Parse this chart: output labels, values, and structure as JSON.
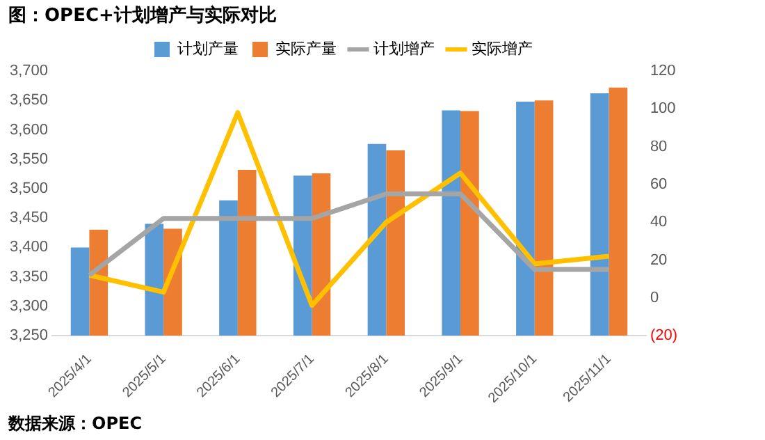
{
  "chart_data": {
    "type": "bar",
    "title": "图：OPEC+计划增产与实际对比",
    "categories": [
      "2025/4/1",
      "2025/5/1",
      "2025/6/1",
      "2025/7/1",
      "2025/8/1",
      "2025/9/1",
      "2025/10/1",
      "2025/11/1"
    ],
    "series": [
      {
        "name": "计划产量",
        "color": "#5b9bd5",
        "values": [
          3400,
          3440,
          3480,
          3522,
          3576,
          3633,
          3648,
          3662
        ]
      },
      {
        "name": "实际产量",
        "color": "#ed7d31",
        "values": [
          3430,
          3432,
          3532,
          3526,
          3565,
          3632,
          3650,
          3672
        ]
      },
      {
        "name": "计划增产",
        "type": "line",
        "axis": "y2",
        "color": "#a5a5a5",
        "values": [
          12,
          42,
          42,
          42,
          55,
          55,
          15,
          15
        ]
      },
      {
        "name": "实际增产",
        "type": "line",
        "axis": "y2",
        "color": "#ffc000",
        "values": [
          12,
          3,
          98,
          -4,
          40,
          66,
          18,
          22
        ]
      }
    ],
    "ylim": [
      3250,
      3700
    ],
    "yticks": [
      {
        "value": 3250,
        "label": "3,250"
      },
      {
        "value": 3300,
        "label": "3,300"
      },
      {
        "value": 3350,
        "label": "3,350"
      },
      {
        "value": 3400,
        "label": "3,400"
      },
      {
        "value": 3450,
        "label": "3,450"
      },
      {
        "value": 3500,
        "label": "3,500"
      },
      {
        "value": 3550,
        "label": "3,550"
      },
      {
        "value": 3600,
        "label": "3,600"
      },
      {
        "value": 3650,
        "label": "3,650"
      },
      {
        "value": 3700,
        "label": "3,700"
      }
    ],
    "y2lim": [
      -20,
      120
    ],
    "y2ticks": [
      {
        "value": -20,
        "label": "(20)"
      },
      0,
      20,
      40,
      60,
      80,
      100,
      120
    ],
    "grid": false,
    "legend": "top",
    "marker": "none",
    "annotations": [
      "数据来源：OPEC"
    ]
  }
}
